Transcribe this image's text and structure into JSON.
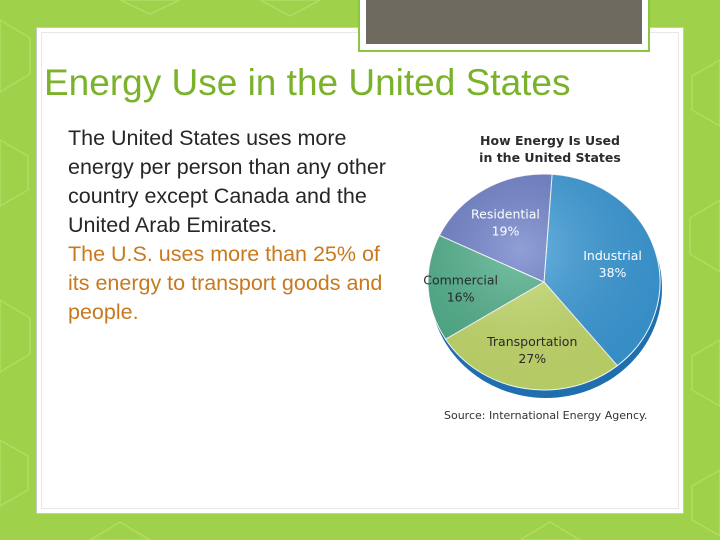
{
  "slide": {
    "title": "Energy Use in the United States",
    "paragraph_1": "The United States uses more energy per person than any other country except Canada and the United Arab Emirates.",
    "paragraph_2": "The U.S. uses more than 25% of its energy to transport goods and people."
  },
  "colors": {
    "background": "#9fd14a",
    "title": "#7ab22a",
    "body_text": "#262626",
    "highlight_text": "#c8791e",
    "tab_fill": "#6e6a5f"
  },
  "chart_data": {
    "type": "pie",
    "title_line_1": "How Energy Is Used",
    "title_line_2": "in the United States",
    "source": "Source: International Energy Agency.",
    "slices": [
      {
        "name": "Industrial",
        "value": 38,
        "value_label": "38%",
        "color": "#3a9bd9"
      },
      {
        "name": "Transportation",
        "value": 27,
        "value_label": "27%",
        "color": "#c6dd6c"
      },
      {
        "name": "Commercial",
        "value": 16,
        "value_label": "16%",
        "color": "#4fb08a"
      },
      {
        "name": "Residential",
        "value": 19,
        "value_label": "19%",
        "color": "#6c7fc9"
      }
    ]
  }
}
